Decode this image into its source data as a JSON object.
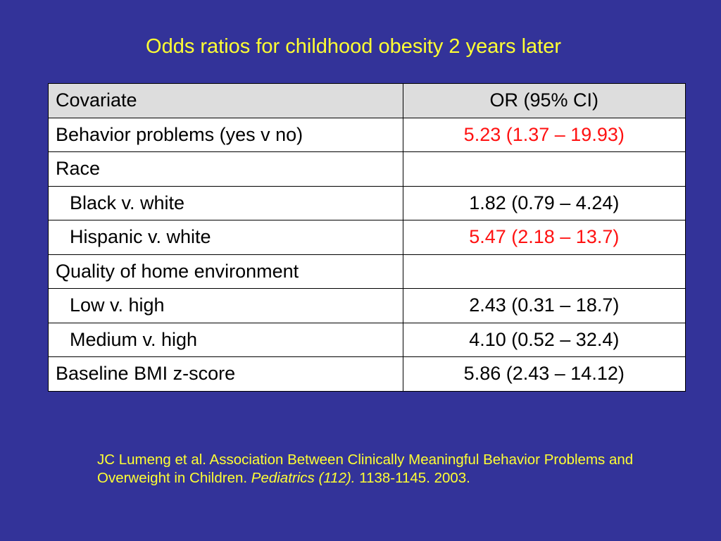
{
  "title": "Odds ratios for childhood obesity 2 years later",
  "table": {
    "headers": [
      "Covariate",
      "OR (95% CI)"
    ],
    "rows": [
      {
        "covariate": "Behavior problems (yes v no)",
        "or": "5.23 (1.37 – 19.93)"
      },
      {
        "covariate": "Race",
        "or": ""
      },
      {
        "covariate": "Black v. white",
        "or": "1.82 (0.79 – 4.24)"
      },
      {
        "covariate": "Hispanic v. white",
        "or": "5.47 (2.18 – 13.7)"
      },
      {
        "covariate": "Quality of home environment",
        "or": ""
      },
      {
        "covariate": "Low v. high",
        "or": "2.43 (0.31 – 18.7)"
      },
      {
        "covariate": "Medium v. high",
        "or": "4.10 (0.52 – 32.4)"
      },
      {
        "covariate": "Baseline BMI z-score",
        "or": "5.86 (2.43 – 14.12)"
      }
    ]
  },
  "citation": {
    "text_part1": "JC Lumeng et al. Association Between Clinically Meaningful Behavior Problems and Overweight in Children. ",
    "journal": "Pediatrics (112).",
    "text_part2": " 1138-1145. 2003."
  },
  "colors": {
    "background": "#333399",
    "title_text": "#ffff33",
    "significant_value": "#ff1111",
    "header_fill": "#dddddd"
  }
}
